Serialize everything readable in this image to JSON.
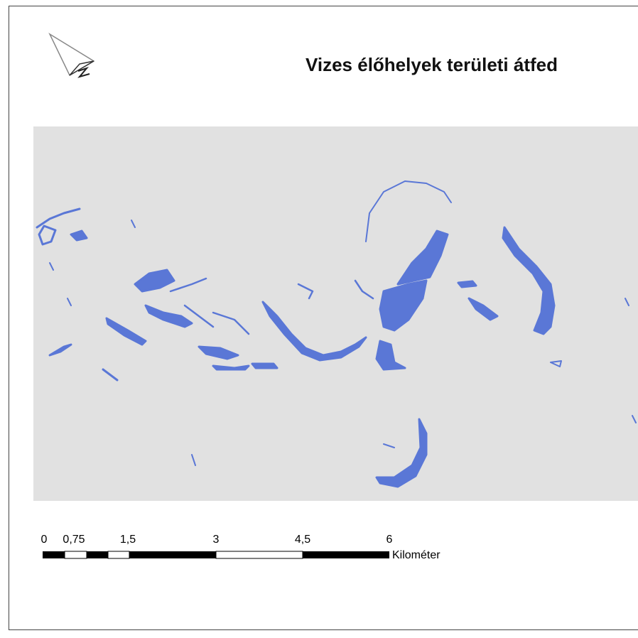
{
  "title": "Vizes élőhelyek területi átfed",
  "scale_bar": {
    "labels": [
      "0",
      "0,75",
      "1,5",
      "3",
      "4,5",
      "6"
    ],
    "unit": "Kilométer"
  }
}
